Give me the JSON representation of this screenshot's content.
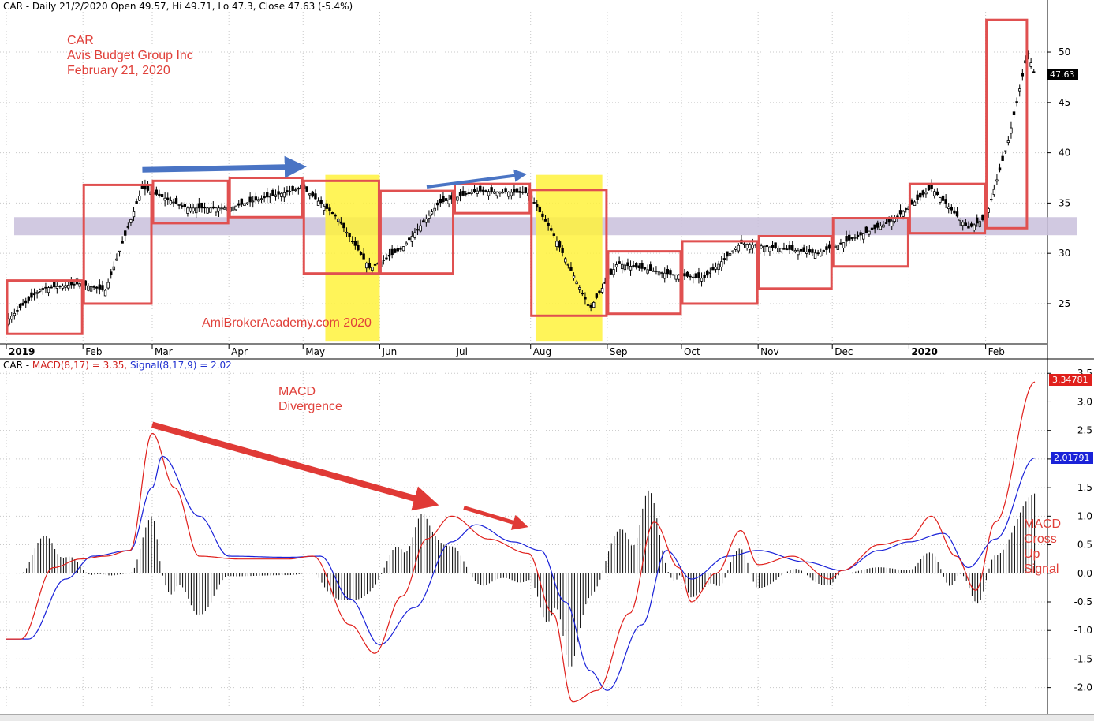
{
  "header": {
    "price_title": "CAR - Daily 21/2/2020 Open 49.57, Hi 49.71, Lo 47.3, Close 47.63 (-5.4%)",
    "macd_prefix": "CAR - ",
    "macd_part": "MACD(8,17) = 3.35,",
    "signal_part": "Signal(8,17,9) = 2.02"
  },
  "annotations": {
    "title_block": "CAR\nAvis Budget Group Inc\nFebruary 21, 2020",
    "watermark": "AmiBrokerAcademy.com   2020",
    "divergence": "MACD\nDivergence",
    "cross": "MACD\nCross\nUp\nSignal"
  },
  "price_tag": "47.63",
  "macd_tag": "3.34781",
  "signal_tag": "2.01791",
  "colors": {
    "macd_line": "#e0201c",
    "signal_line": "#1a22d8",
    "box": "#e05050",
    "highlight": "#fff23c",
    "band": "#c9bfdc",
    "arrow_blue": "#4a74c4",
    "arrow_red": "#e03a36"
  },
  "chart_data": [
    {
      "type": "candlestick",
      "x_axis": [
        "2019",
        "Feb",
        "Mar",
        "Apr",
        "May",
        "Jun",
        "Jul",
        "Aug",
        "Sep",
        "Oct",
        "Nov",
        "Dec",
        "2020",
        "Feb"
      ],
      "y_ticks": [
        25,
        30,
        35,
        40,
        45,
        50
      ],
      "ylim": [
        21,
        54
      ],
      "support_band": [
        31.8,
        33.6
      ],
      "close_path": [
        [
          "2019-01-02",
          23.5
        ],
        [
          "2019-01-15",
          26.5
        ],
        [
          "2019-01-31",
          27
        ],
        [
          "2019-02-10",
          26.3
        ],
        [
          "2019-02-25",
          36.5
        ],
        [
          "2019-03-15",
          34.5
        ],
        [
          "2019-04-01",
          34.5
        ],
        [
          "2019-04-15",
          35.5
        ],
        [
          "2019-05-01",
          36.5
        ],
        [
          "2019-05-15",
          33.5
        ],
        [
          "2019-05-28",
          28.5
        ],
        [
          "2019-06-10",
          30.5
        ],
        [
          "2019-06-25",
          35
        ],
        [
          "2019-07-10",
          36.2
        ],
        [
          "2019-07-31",
          36
        ],
        [
          "2019-08-10",
          32
        ],
        [
          "2019-08-25",
          24.5
        ],
        [
          "2019-09-05",
          29
        ],
        [
          "2019-09-25",
          28
        ],
        [
          "2019-10-10",
          27.5
        ],
        [
          "2019-10-25",
          31
        ],
        [
          "2019-11-10",
          30.5
        ],
        [
          "2019-11-25",
          30
        ],
        [
          "2019-12-05",
          31
        ],
        [
          "2019-12-25",
          33.2
        ],
        [
          "2020-01-10",
          36.5
        ],
        [
          "2020-01-25",
          32.5
        ],
        [
          "2020-02-01",
          33.5
        ],
        [
          "2020-02-10",
          41
        ],
        [
          "2020-02-18",
          50
        ],
        [
          "2020-02-21",
          47.63
        ]
      ],
      "boxes": [
        {
          "from": "2019-01-01",
          "to": "2019-02-01",
          "low": 22,
          "high": 27.3
        },
        {
          "from": "2019-02-01",
          "to": "2019-03-01",
          "low": 25,
          "high": 36.8
        },
        {
          "from": "2019-03-01",
          "to": "2019-04-01",
          "low": 33,
          "high": 37.2
        },
        {
          "from": "2019-04-01",
          "to": "2019-05-01",
          "low": 33.6,
          "high": 37.5
        },
        {
          "from": "2019-05-01",
          "to": "2019-06-01",
          "low": 28,
          "high": 37.2
        },
        {
          "from": "2019-06-01",
          "to": "2019-07-01",
          "low": 28,
          "high": 36.2
        },
        {
          "from": "2019-07-01",
          "to": "2019-08-01",
          "low": 34,
          "high": 36.9
        },
        {
          "from": "2019-08-01",
          "to": "2019-09-01",
          "low": 23.8,
          "high": 36.3
        },
        {
          "from": "2019-09-01",
          "to": "2019-10-01",
          "low": 24,
          "high": 30.2
        },
        {
          "from": "2019-10-01",
          "to": "2019-11-01",
          "low": 25,
          "high": 31.2
        },
        {
          "from": "2019-11-01",
          "to": "2019-12-01",
          "low": 26.5,
          "high": 31.7
        },
        {
          "from": "2019-12-01",
          "to": "2020-01-01",
          "low": 28.7,
          "high": 33.5
        },
        {
          "from": "2020-01-01",
          "to": "2020-02-01",
          "low": 32,
          "high": 36.9
        },
        {
          "from": "2020-02-01",
          "to": "2020-02-18",
          "low": 32.5,
          "high": 53.2
        }
      ],
      "highlights": [
        {
          "from": "2019-05-10",
          "to": "2019-06-01"
        },
        {
          "from": "2019-08-03",
          "to": "2019-08-30"
        }
      ]
    },
    {
      "type": "line",
      "y_ticks": [
        -2.0,
        -1.5,
        -1.0,
        -0.5,
        0.0,
        0.5,
        1.0,
        1.5,
        2.0,
        2.5,
        3.0,
        3.5
      ],
      "ylim": [
        -2.35,
        3.6
      ],
      "series": [
        {
          "name": "MACD(8,17)",
          "points": [
            [
              "2019-01-01",
              -1.15
            ],
            [
              "2019-01-07",
              -1.15
            ],
            [
              "2019-01-20",
              0.1
            ],
            [
              "2019-01-31",
              0.25
            ],
            [
              "2019-02-10",
              0.3
            ],
            [
              "2019-02-20",
              0.4
            ],
            [
              "2019-03-01",
              2.45
            ],
            [
              "2019-03-10",
              1.5
            ],
            [
              "2019-03-20",
              0.3
            ],
            [
              "2019-04-05",
              0.25
            ],
            [
              "2019-04-25",
              0.25
            ],
            [
              "2019-05-05",
              0.3
            ],
            [
              "2019-05-20",
              -0.9
            ],
            [
              "2019-05-30",
              -1.4
            ],
            [
              "2019-06-10",
              -0.4
            ],
            [
              "2019-06-20",
              0.6
            ],
            [
              "2019-06-30",
              1.0
            ],
            [
              "2019-07-15",
              0.6
            ],
            [
              "2019-07-31",
              0.35
            ],
            [
              "2019-08-10",
              -0.7
            ],
            [
              "2019-08-18",
              -2.25
            ],
            [
              "2019-08-28",
              -2.05
            ],
            [
              "2019-09-10",
              -0.7
            ],
            [
              "2019-09-20",
              0.9
            ],
            [
              "2019-09-30",
              0.1
            ],
            [
              "2019-10-05",
              -0.5
            ],
            [
              "2019-10-15",
              0.0
            ],
            [
              "2019-10-25",
              0.75
            ],
            [
              "2019-11-01",
              0.15
            ],
            [
              "2019-11-15",
              0.3
            ],
            [
              "2019-11-30",
              -0.1
            ],
            [
              "2019-12-05",
              0.05
            ],
            [
              "2019-12-20",
              0.5
            ],
            [
              "2020-01-01",
              0.6
            ],
            [
              "2020-01-10",
              1.0
            ],
            [
              "2020-01-20",
              0.3
            ],
            [
              "2020-01-28",
              -0.3
            ],
            [
              "2020-02-05",
              0.9
            ],
            [
              "2020-02-21",
              3.35
            ]
          ]
        },
        {
          "name": "Signal(8,17,9)",
          "points": [
            [
              "2019-01-01",
              -1.15
            ],
            [
              "2019-01-10",
              -1.15
            ],
            [
              "2019-01-25",
              -0.1
            ],
            [
              "2019-02-05",
              0.3
            ],
            [
              "2019-02-20",
              0.4
            ],
            [
              "2019-03-01",
              1.5
            ],
            [
              "2019-03-05",
              2.05
            ],
            [
              "2019-03-20",
              1.0
            ],
            [
              "2019-04-01",
              0.3
            ],
            [
              "2019-04-25",
              0.28
            ],
            [
              "2019-05-08",
              0.3
            ],
            [
              "2019-05-20",
              -0.45
            ],
            [
              "2019-06-01",
              -1.25
            ],
            [
              "2019-06-15",
              -0.6
            ],
            [
              "2019-06-30",
              0.55
            ],
            [
              "2019-07-10",
              0.85
            ],
            [
              "2019-07-25",
              0.55
            ],
            [
              "2019-08-05",
              0.4
            ],
            [
              "2019-08-15",
              -0.5
            ],
            [
              "2019-08-25",
              -1.7
            ],
            [
              "2019-09-01",
              -2.05
            ],
            [
              "2019-09-15",
              -0.9
            ],
            [
              "2019-09-25",
              0.4
            ],
            [
              "2019-10-05",
              -0.1
            ],
            [
              "2019-10-20",
              0.3
            ],
            [
              "2019-11-01",
              0.4
            ],
            [
              "2019-11-20",
              0.2
            ],
            [
              "2019-12-05",
              0.05
            ],
            [
              "2019-12-20",
              0.4
            ],
            [
              "2020-01-01",
              0.55
            ],
            [
              "2020-01-15",
              0.7
            ],
            [
              "2020-01-25",
              0.1
            ],
            [
              "2020-02-05",
              0.6
            ],
            [
              "2020-02-21",
              2.02
            ]
          ]
        }
      ]
    }
  ]
}
